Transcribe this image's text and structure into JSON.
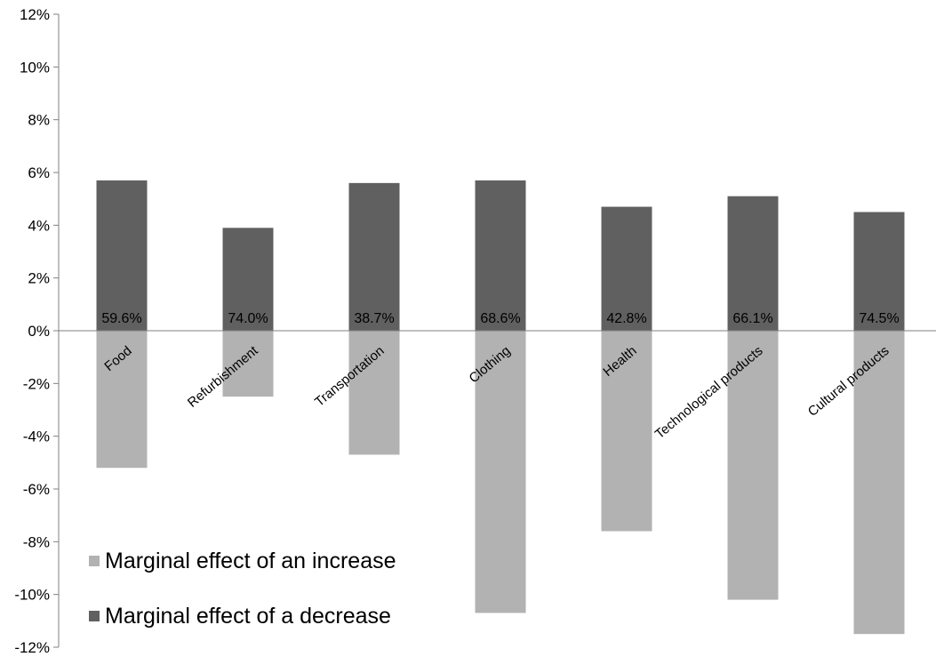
{
  "chart_data": {
    "type": "bar",
    "categories": [
      "Food",
      "Refurbishment",
      "Transportation",
      "Clothing",
      "Health",
      "Technological products",
      "Cultural products"
    ],
    "series": [
      {
        "name": "Marginal effect of an increase",
        "color": "#b2b2b2",
        "values": [
          -5.2,
          -2.5,
          -4.7,
          -10.7,
          -7.6,
          -10.2,
          -11.5
        ]
      },
      {
        "name": "Marginal effect of a decrease",
        "color": "#606060",
        "values": [
          5.7,
          3.9,
          5.6,
          5.7,
          4.7,
          5.1,
          4.5
        ]
      }
    ],
    "data_labels": [
      "59.6%",
      "74.0%",
      "38.7%",
      "68.6%",
      "42.8%",
      "66.1%",
      "74.5%"
    ],
    "y_ticks": [
      "12%",
      "10%",
      "8%",
      "6%",
      "4%",
      "2%",
      "0%",
      "-2%",
      "-4%",
      "-6%",
      "-8%",
      "-10%",
      "-12%"
    ],
    "ylim": [
      -12,
      12
    ],
    "y_unit": "%",
    "grid": false,
    "legend_placement": "bottom-left",
    "title": "",
    "xlabel": "",
    "ylabel": ""
  }
}
